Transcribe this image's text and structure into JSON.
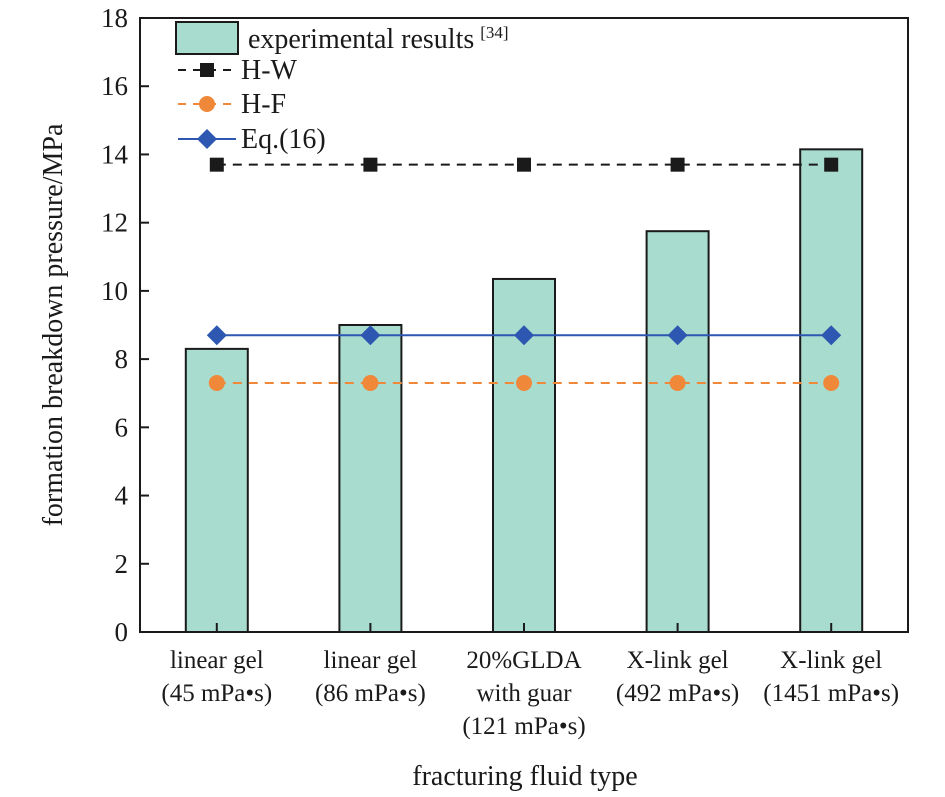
{
  "chart_data": {
    "type": "bar",
    "xlabel": "fracturing fluid type",
    "ylabel": "formation breakdown pressure/MPa",
    "ylim": [
      0,
      18
    ],
    "yticks": [
      0,
      2,
      4,
      6,
      8,
      10,
      12,
      14,
      16,
      18
    ],
    "categories": [
      [
        "linear gel",
        "(45 mPa•s)"
      ],
      [
        "linear gel",
        "(86 mPa•s)"
      ],
      [
        "20%GLDA",
        "with guar",
        "(121 mPa•s)"
      ],
      [
        "X-link gel",
        "(492 mPa•s)"
      ],
      [
        "X-link gel",
        "(1451 mPa•s)"
      ]
    ],
    "series": [
      {
        "name": "experimental results",
        "name_sup": "[34]",
        "kind": "bar",
        "values": [
          8.3,
          9.0,
          10.35,
          11.75,
          14.15
        ],
        "color": "#a8dccf"
      },
      {
        "name": "H-W",
        "kind": "line",
        "style": "dashed",
        "marker": "square",
        "values": [
          13.7,
          13.7,
          13.7,
          13.7,
          13.7
        ],
        "color": "#1a1a1a"
      },
      {
        "name": "H-F",
        "kind": "line",
        "style": "dashed",
        "marker": "circle",
        "values": [
          7.3,
          7.3,
          7.3,
          7.3,
          7.3
        ],
        "color": "#f0883a"
      },
      {
        "name": "Eq.(16)",
        "kind": "line",
        "style": "solid",
        "marker": "diamond",
        "values": [
          8.7,
          8.7,
          8.7,
          8.7,
          8.7
        ],
        "color": "#2d57b0"
      }
    ],
    "legend_position": "top-left",
    "grid": false
  }
}
